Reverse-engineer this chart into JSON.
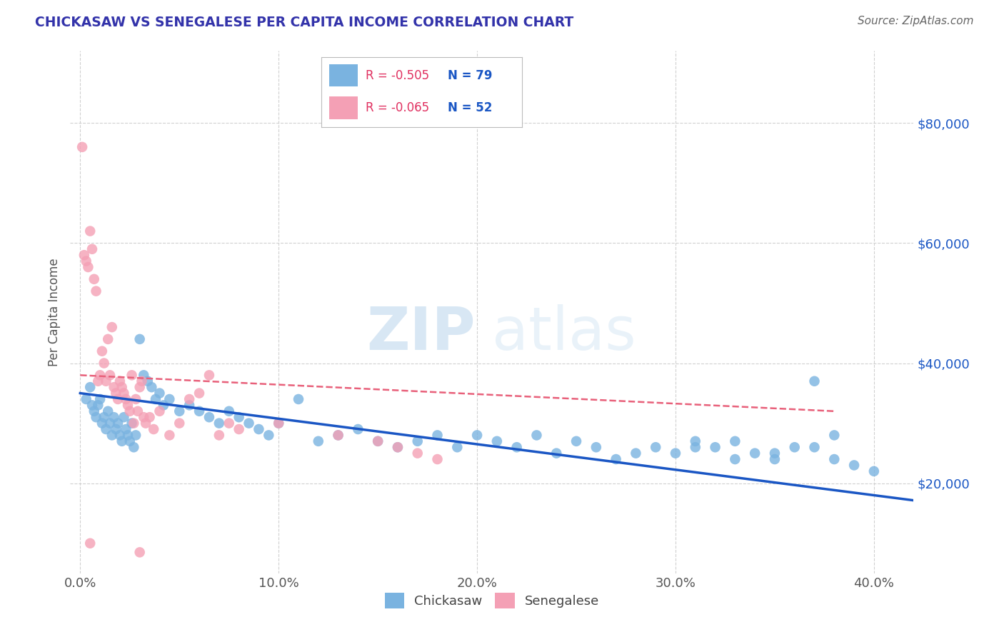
{
  "title": "CHICKASAW VS SENEGALESE PER CAPITA INCOME CORRELATION CHART",
  "source_text": "Source: ZipAtlas.com",
  "ylabel": "Per Capita Income",
  "xlabel_ticks": [
    "0.0%",
    "10.0%",
    "20.0%",
    "30.0%",
    "40.0%"
  ],
  "xlabel_vals": [
    0.0,
    0.1,
    0.2,
    0.3,
    0.4
  ],
  "ytick_labels": [
    "$20,000",
    "$40,000",
    "$60,000",
    "$80,000"
  ],
  "ytick_vals": [
    20000,
    40000,
    60000,
    80000
  ],
  "xlim": [
    -0.005,
    0.42
  ],
  "ylim": [
    5000,
    92000
  ],
  "chickasaw_color": "#7ab3e0",
  "senegalese_color": "#f4a0b5",
  "chickasaw_line_color": "#1a56c4",
  "senegalese_line_color": "#e8607a",
  "R_chickasaw": -0.505,
  "N_chickasaw": 79,
  "R_senegalese": -0.065,
  "N_senegalese": 52,
  "legend_R_color": "#e03060",
  "legend_N_color": "#1a56c4",
  "watermark_zip": "ZIP",
  "watermark_atlas": "atlas",
  "background_color": "#ffffff",
  "grid_color": "#d0d0d0",
  "title_color": "#3333aa",
  "source_color": "#666666",
  "axis_label_color": "#555555",
  "bottom_legend_color": "#444444",
  "chickasaw_x": [
    0.003,
    0.005,
    0.006,
    0.007,
    0.008,
    0.009,
    0.01,
    0.011,
    0.012,
    0.013,
    0.014,
    0.015,
    0.016,
    0.017,
    0.018,
    0.019,
    0.02,
    0.021,
    0.022,
    0.023,
    0.024,
    0.025,
    0.026,
    0.027,
    0.028,
    0.03,
    0.032,
    0.034,
    0.036,
    0.038,
    0.04,
    0.042,
    0.045,
    0.05,
    0.055,
    0.06,
    0.065,
    0.07,
    0.075,
    0.08,
    0.085,
    0.09,
    0.095,
    0.1,
    0.11,
    0.12,
    0.13,
    0.14,
    0.15,
    0.16,
    0.17,
    0.18,
    0.19,
    0.2,
    0.21,
    0.22,
    0.23,
    0.24,
    0.25,
    0.26,
    0.27,
    0.28,
    0.29,
    0.3,
    0.31,
    0.32,
    0.33,
    0.34,
    0.35,
    0.36,
    0.37,
    0.38,
    0.39,
    0.4,
    0.38,
    0.37,
    0.35,
    0.33,
    0.31
  ],
  "chickasaw_y": [
    34000,
    36000,
    33000,
    32000,
    31000,
    33000,
    34000,
    30000,
    31000,
    29000,
    32000,
    30000,
    28000,
    31000,
    29000,
    30000,
    28000,
    27000,
    31000,
    29000,
    28000,
    27000,
    30000,
    26000,
    28000,
    44000,
    38000,
    37000,
    36000,
    34000,
    35000,
    33000,
    34000,
    32000,
    33000,
    32000,
    31000,
    30000,
    32000,
    31000,
    30000,
    29000,
    28000,
    30000,
    34000,
    27000,
    28000,
    29000,
    27000,
    26000,
    27000,
    28000,
    26000,
    28000,
    27000,
    26000,
    28000,
    25000,
    27000,
    26000,
    24000,
    25000,
    26000,
    25000,
    27000,
    26000,
    24000,
    25000,
    24000,
    26000,
    37000,
    24000,
    23000,
    22000,
    28000,
    26000,
    25000,
    27000,
    26000
  ],
  "senegalese_x": [
    0.001,
    0.002,
    0.003,
    0.004,
    0.005,
    0.006,
    0.007,
    0.008,
    0.009,
    0.01,
    0.011,
    0.012,
    0.013,
    0.014,
    0.015,
    0.016,
    0.017,
    0.018,
    0.019,
    0.02,
    0.021,
    0.022,
    0.023,
    0.024,
    0.025,
    0.026,
    0.027,
    0.028,
    0.029,
    0.03,
    0.031,
    0.032,
    0.033,
    0.035,
    0.037,
    0.04,
    0.045,
    0.05,
    0.055,
    0.06,
    0.065,
    0.07,
    0.075,
    0.08,
    0.1,
    0.13,
    0.15,
    0.16,
    0.17,
    0.18,
    0.03,
    0.005
  ],
  "senegalese_y": [
    76000,
    58000,
    57000,
    56000,
    62000,
    59000,
    54000,
    52000,
    37000,
    38000,
    42000,
    40000,
    37000,
    44000,
    38000,
    46000,
    36000,
    35000,
    34000,
    37000,
    36000,
    35000,
    34000,
    33000,
    32000,
    38000,
    30000,
    34000,
    32000,
    36000,
    37000,
    31000,
    30000,
    31000,
    29000,
    32000,
    28000,
    30000,
    34000,
    35000,
    38000,
    28000,
    30000,
    29000,
    30000,
    28000,
    27000,
    26000,
    25000,
    24000,
    8500,
    10000
  ]
}
